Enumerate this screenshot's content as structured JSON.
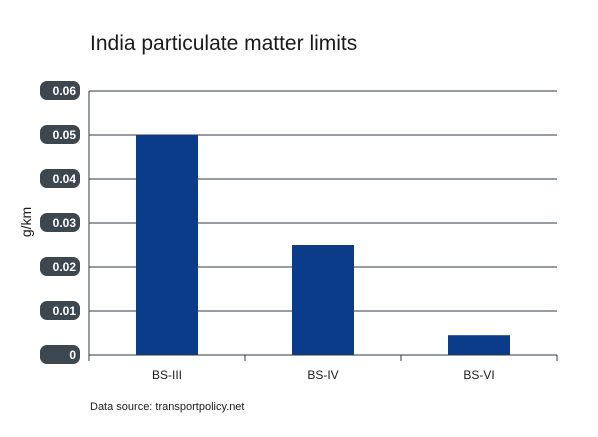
{
  "chart_data": {
    "type": "bar",
    "title": "India particulate matter limits",
    "ylabel": "g/km",
    "xlabel": "",
    "categories": [
      "BS-III",
      "BS-IV",
      "BS-VI"
    ],
    "values": [
      0.05,
      0.025,
      0.0045
    ],
    "ylim": [
      0,
      0.06
    ],
    "yticks": [
      "0",
      "0.01",
      "0.02",
      "0.03",
      "0.04",
      "0.05",
      "0.06"
    ],
    "grid": true,
    "bar_color": "#0b3c8a",
    "source": "Data source: transportpolicy.net"
  }
}
